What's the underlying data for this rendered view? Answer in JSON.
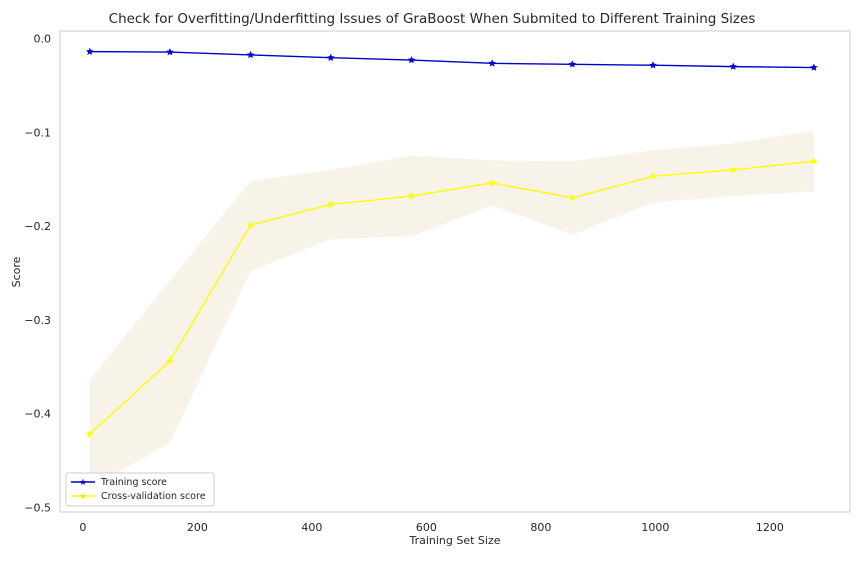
{
  "chart_data": {
    "type": "line",
    "title": "Check for Overfitting/Underfitting Issues of GraBoost When Submited to Different Training Sizes",
    "xlabel": "Training Set Size",
    "ylabel": "Score",
    "xlim": [
      -40,
      1340
    ],
    "ylim": [
      -0.505,
      0.008
    ],
    "xticks": [
      0,
      200,
      400,
      600,
      800,
      1000,
      1200
    ],
    "yticks": [
      0.0,
      -0.1,
      -0.2,
      -0.3,
      -0.4,
      -0.5
    ],
    "xtick_labels": [
      "0",
      "200",
      "400",
      "600",
      "800",
      "1000",
      "1200"
    ],
    "ytick_labels": [
      "0.0",
      "−0.1",
      "−0.2",
      "−0.3",
      "−0.4",
      "−0.5"
    ],
    "grid": false,
    "legend_position": "lower-left",
    "x": [
      12,
      152,
      293,
      433,
      574,
      715,
      855,
      996,
      1136,
      1277
    ],
    "series": [
      {
        "name": "Training score",
        "color": "#0000cd",
        "marker": "star",
        "values": [
          -0.014,
          -0.0145,
          -0.0175,
          -0.0205,
          -0.023,
          -0.0265,
          -0.0275,
          -0.0285,
          -0.03,
          -0.031
        ]
      },
      {
        "name": "Cross-validation score",
        "color": "#ffff00",
        "marker": "star",
        "values": [
          -0.422,
          -0.344,
          -0.199,
          -0.177,
          -0.168,
          -0.154,
          -0.17,
          -0.147,
          -0.14,
          -0.131
        ],
        "band_upper": [
          -0.364,
          -0.258,
          -0.152,
          -0.14,
          -0.125,
          -0.13,
          -0.131,
          -0.119,
          -0.112,
          -0.098
        ],
        "band_lower": [
          -0.48,
          -0.431,
          -0.248,
          -0.214,
          -0.211,
          -0.178,
          -0.209,
          -0.175,
          -0.168,
          -0.163
        ],
        "band_color": "#f5efe0"
      }
    ]
  }
}
